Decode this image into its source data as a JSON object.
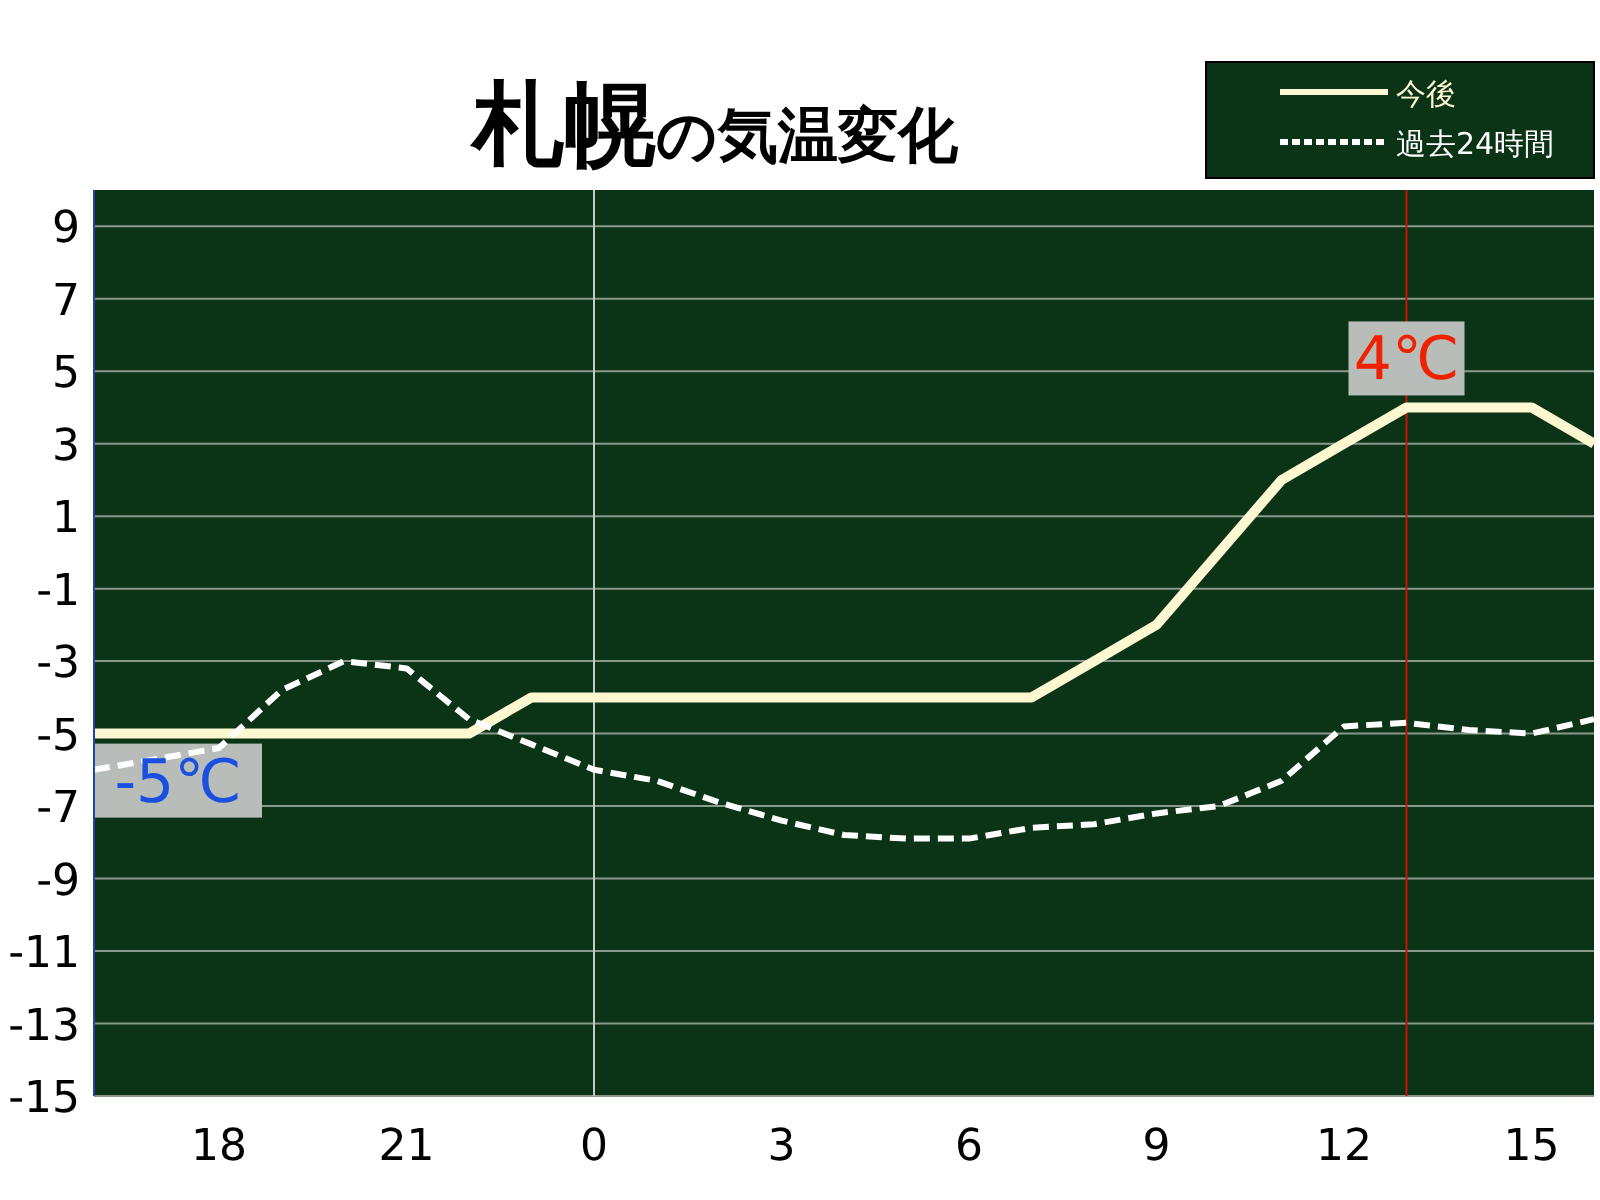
{
  "chart_data": {
    "type": "line",
    "title": "札幌",
    "subtitle": "の気温変化",
    "categories": [
      null,
      null,
      "18",
      null,
      null,
      "21",
      null,
      null,
      "0",
      null,
      null,
      "3",
      null,
      null,
      "6",
      null,
      null,
      "9",
      null,
      null,
      "12",
      null,
      null,
      "15",
      null
    ],
    "ylim": [
      -15,
      10
    ],
    "yticks": [
      -15,
      -13,
      -11,
      -9,
      -7,
      -5,
      -3,
      -1,
      1,
      3,
      5,
      7,
      9
    ],
    "grid": "y",
    "legend": "top right",
    "marker": "none",
    "series": [
      {
        "name": "今後",
        "color": "#fdf8d2",
        "line_style": "solid",
        "values": [
          -5,
          -5,
          -5,
          -5,
          -5,
          -5,
          -5,
          -4,
          -4,
          -4,
          -4,
          -4,
          -4,
          -4,
          -4,
          -4,
          -3,
          -2,
          0,
          2,
          3,
          4,
          4,
          4,
          3
        ]
      },
      {
        "name": "過去24時間",
        "color": "#ffffff",
        "line_style": "dashed",
        "values": [
          -6.0,
          -5.7,
          -5.4,
          -3.8,
          -3.0,
          -3.2,
          -4.6,
          -5.3,
          -6.0,
          -6.3,
          -6.9,
          -7.4,
          -7.8,
          -7.9,
          -7.9,
          -7.6,
          -7.5,
          -7.2,
          -7.0,
          -6.3,
          -4.8,
          -4.7,
          -4.9,
          -5.0,
          -4.6
        ]
      }
    ],
    "ref_lines": [
      {
        "axis": "x",
        "value": "0",
        "color": "#c8c8c8"
      }
    ],
    "annotations": [
      {
        "text": "-5℃",
        "y": -5
      },
      {
        "text": "4℃",
        "y": 4
      }
    ]
  }
}
